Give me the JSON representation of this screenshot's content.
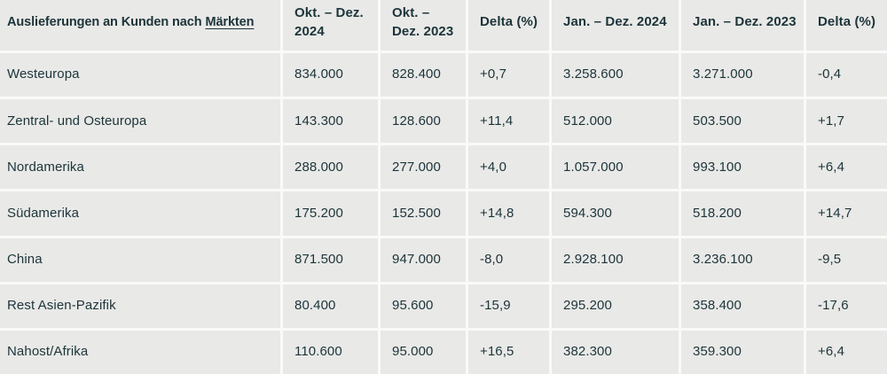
{
  "chart_data": {
    "type": "table",
    "title": "Auslieferungen an Kunden nach Märkten",
    "title_prefix": "Auslieferungen an Kunden nach",
    "title_link": "Märkten",
    "columns": [
      "Okt. – Dez. 2024",
      "Okt. – Dez. 2023",
      "Delta (%)",
      "Jan. – Dez. 2024",
      "Jan. – Dez. 2023",
      "Delta (%)"
    ],
    "rows": [
      {
        "market": "Westeuropa",
        "values": [
          "834.000",
          "828.400",
          "+0,7",
          "3.258.600",
          "3.271.000",
          "-0,4"
        ]
      },
      {
        "market": "Zentral- und Osteuropa",
        "values": [
          "143.300",
          "128.600",
          "+11,4",
          "512.000",
          "503.500",
          "+1,7"
        ]
      },
      {
        "market": "Nordamerika",
        "values": [
          "288.000",
          "277.000",
          "+4,0",
          "1.057.000",
          "993.100",
          "+6,4"
        ]
      },
      {
        "market": "Südamerika",
        "values": [
          "175.200",
          "152.500",
          "+14,8",
          "594.300",
          "518.200",
          "+14,7"
        ]
      },
      {
        "market": "China",
        "values": [
          "871.500",
          "947.000",
          "-8,0",
          "2.928.100",
          "3.236.100",
          "-9,5"
        ]
      },
      {
        "market": "Rest Asien-Pazifik",
        "values": [
          "80.400",
          "95.600",
          "-15,9",
          "295.200",
          "358.400",
          "-17,6"
        ]
      },
      {
        "market": "Nahost/Afrika",
        "values": [
          "110.600",
          "95.000",
          "+16,5",
          "382.300",
          "359.300",
          "+6,4"
        ]
      }
    ]
  },
  "colors": {
    "cell_background": "#e9e9e7",
    "grid_gap": "#fafaf9",
    "text": "#1c343a"
  }
}
